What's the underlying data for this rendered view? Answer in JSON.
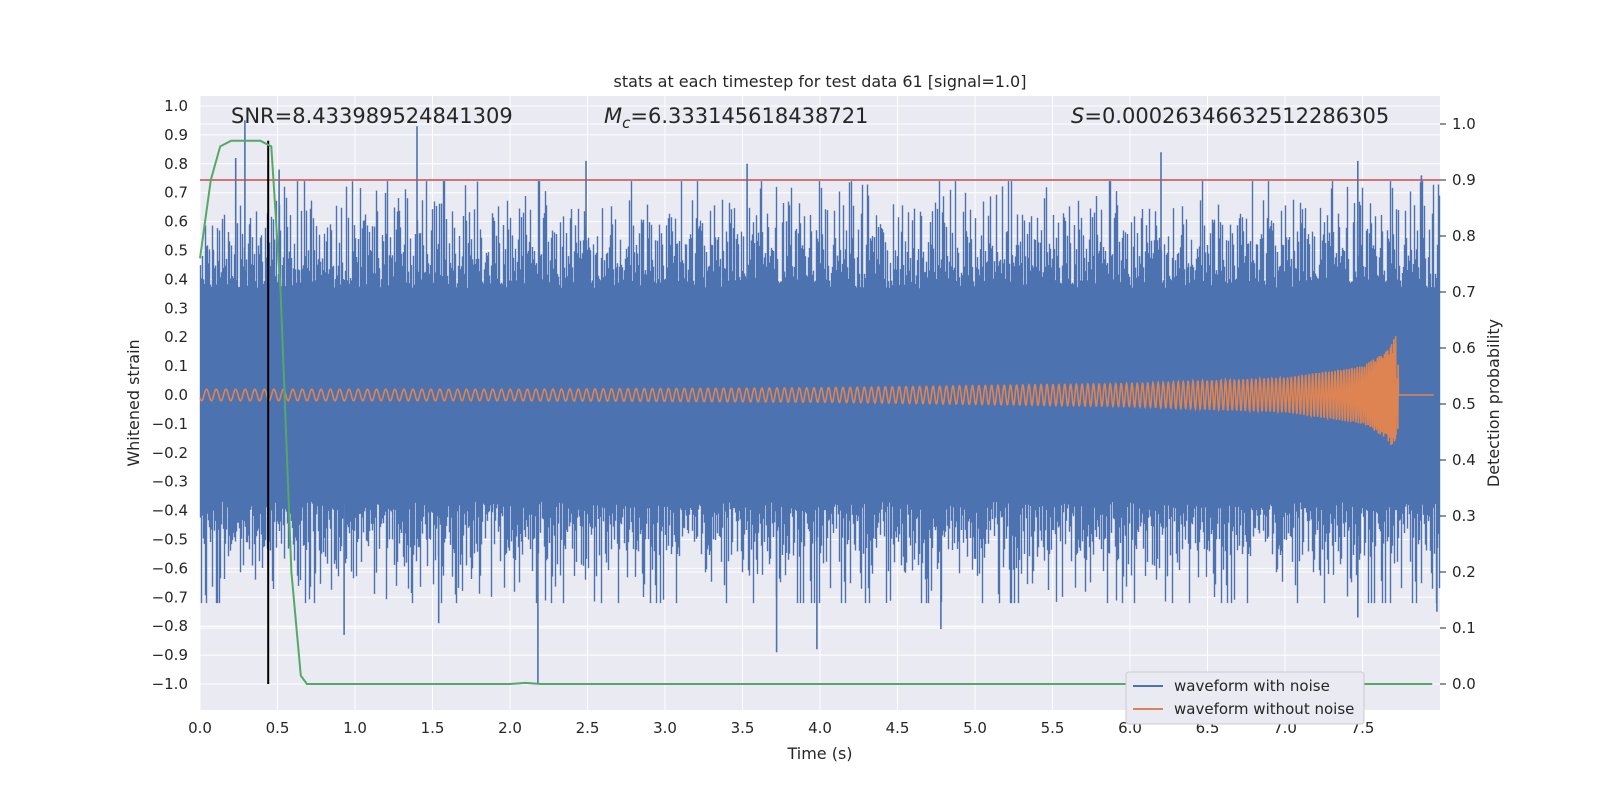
{
  "chart_data": {
    "type": "line",
    "title": "stats at each timestep for test data 61 [signal=1.0]",
    "xlabel": "Time (s)",
    "ylabel": "Whitened strain",
    "ylabel_right": "Detection probability",
    "xlim": [
      0.0,
      8.0
    ],
    "ylim": [
      -1.1,
      1.03
    ],
    "ylim_right": [
      -0.05,
      1.05
    ],
    "xticks": [
      "0.0",
      "0.5",
      "1.0",
      "1.5",
      "2.0",
      "2.5",
      "3.0",
      "3.5",
      "4.0",
      "4.5",
      "5.0",
      "5.5",
      "6.0",
      "6.5",
      "7.0",
      "7.5"
    ],
    "yticks": [
      "1.0",
      "0.9",
      "0.8",
      "0.7",
      "0.6",
      "0.5",
      "0.4",
      "0.3",
      "0.2",
      "0.1",
      "0.0",
      "-0.1",
      "-0.2",
      "-0.3",
      "-0.4",
      "-0.5",
      "-0.6",
      "-0.7",
      "-0.8",
      "-0.9",
      "-1.0"
    ],
    "yticks_right": [
      "1.0",
      "0.9",
      "0.8",
      "0.7",
      "0.6",
      "0.5",
      "0.4",
      "0.3",
      "0.2",
      "0.1",
      "0.0"
    ],
    "stats": {
      "snr_label": "SNR",
      "snr_value": "=8.433989524841309",
      "mc_label_main": "M",
      "mc_label_sub": "c",
      "mc_value": "=6.333145618438721",
      "s_label": "S",
      "s_value": "=0.00026346632512286305"
    },
    "threshold": 0.9,
    "marker_time": 0.44,
    "colors": {
      "noise": "#4c72b0",
      "clean": "#dd8452",
      "prob": "#55a868",
      "threshold": "#c44e52",
      "marker": "#000000",
      "background": "#eaeaf2",
      "grid": "#ffffff"
    },
    "series": [
      {
        "name": "waveform with noise",
        "axis": "left",
        "color": "#4c72b0",
        "description_band": [
          -0.42,
          0.42
        ],
        "peaks": [
          {
            "x": 0.23,
            "y": 0.82
          },
          {
            "x": 0.29,
            "y": 0.95
          },
          {
            "x": 0.51,
            "y": 0.78
          },
          {
            "x": 1.4,
            "y": 0.93
          },
          {
            "x": 2.49,
            "y": 0.81
          },
          {
            "x": 3.53,
            "y": 0.8
          },
          {
            "x": 6.2,
            "y": 0.84
          },
          {
            "x": 7.47,
            "y": 0.81
          },
          {
            "x": 7.88,
            "y": 0.76
          },
          {
            "x": 0.93,
            "y": -0.83
          },
          {
            "x": 1.54,
            "y": -0.79
          },
          {
            "x": 2.18,
            "y": -1.0
          },
          {
            "x": 3.72,
            "y": -0.89
          },
          {
            "x": 3.98,
            "y": -0.88
          },
          {
            "x": 4.78,
            "y": -0.81
          },
          {
            "x": 7.47,
            "y": -0.77
          },
          {
            "x": 7.98,
            "y": -0.75
          }
        ]
      },
      {
        "name": "waveform without noise",
        "axis": "left",
        "color": "#dd8452",
        "envelope": [
          {
            "x": 0.0,
            "y": 0.02
          },
          {
            "x": 2.0,
            "y": 0.02
          },
          {
            "x": 4.0,
            "y": 0.025
          },
          {
            "x": 6.0,
            "y": 0.04
          },
          {
            "x": 7.0,
            "y": 0.06
          },
          {
            "x": 7.5,
            "y": 0.1
          },
          {
            "x": 7.65,
            "y": 0.15
          },
          {
            "x": 7.72,
            "y": 0.21
          },
          {
            "x": 7.74,
            "y": 0.0
          },
          {
            "x": 8.0,
            "y": 0.0
          }
        ]
      },
      {
        "name": "Detection probability",
        "axis": "right",
        "color": "#55a868",
        "x": [
          0.0,
          0.07,
          0.13,
          0.2,
          0.26,
          0.33,
          0.39,
          0.46,
          0.52,
          0.59,
          0.65,
          0.69,
          1.0,
          2.0,
          2.1,
          2.2,
          3.0,
          4.0,
          5.0,
          6.0,
          7.0,
          7.95
        ],
        "values": [
          0.76,
          0.9,
          0.96,
          0.97,
          0.97,
          0.97,
          0.97,
          0.96,
          0.7,
          0.2,
          0.015,
          0.0,
          0.0,
          0.0,
          0.002,
          0.0,
          0.0,
          0.0,
          0.0,
          0.0,
          0.0,
          0.0
        ]
      }
    ],
    "legend": {
      "position": "lower-right",
      "entries": [
        {
          "label": "waveform with noise",
          "color": "#4c72b0"
        },
        {
          "label": "waveform without noise",
          "color": "#dd8452"
        }
      ]
    }
  }
}
